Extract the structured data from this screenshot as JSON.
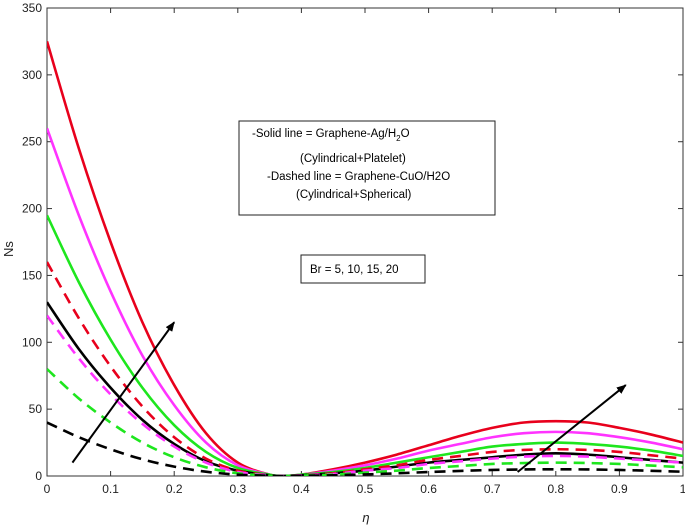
{
  "chart_data": {
    "type": "line",
    "xlabel": "η",
    "ylabel": "Ns",
    "xlim": [
      0,
      1
    ],
    "ylim": [
      0,
      350
    ],
    "xticks": [
      "0",
      "0.1",
      "0.2",
      "0.3",
      "0.4",
      "0.5",
      "0.6",
      "0.7",
      "0.8",
      "0.9",
      "1"
    ],
    "yticks": [
      "0",
      "50",
      "100",
      "150",
      "200",
      "250",
      "300",
      "350"
    ],
    "grid": false,
    "annotation_box": {
      "solid": "-Solid line = Graphene-Ag/H",
      "solid_sub": "2",
      "solid_end": "O",
      "solid_shape": "(Cylindrical+Platelet)",
      "dashed": "-Dashed line = Graphene-CuO/H2O",
      "dashed_shape": "(Cylindrical+Spherical)"
    },
    "param_label": "Br = 5, 10, 15, 20",
    "arrows": [
      {
        "from": [
          0.04,
          10
        ],
        "to": [
          0.2,
          115
        ]
      },
      {
        "from": [
          0.74,
          3
        ],
        "to": [
          0.91,
          68
        ]
      }
    ],
    "series": [
      {
        "color": "#e8001c",
        "style": "solid",
        "x": [
          0,
          0.05,
          0.1,
          0.15,
          0.2,
          0.25,
          0.3,
          0.35,
          0.37,
          0.4,
          0.45,
          0.5,
          0.55,
          0.6,
          0.65,
          0.7,
          0.75,
          0.8,
          0.85,
          0.9,
          0.95,
          1
        ],
        "y": [
          325,
          245,
          175,
          115,
          68,
          32,
          10,
          1,
          0,
          1,
          5,
          10,
          16,
          23,
          30,
          36,
          40,
          41,
          40,
          36,
          31,
          25
        ]
      },
      {
        "color": "#ff33ff",
        "style": "solid",
        "x": [
          0,
          0.05,
          0.1,
          0.15,
          0.2,
          0.25,
          0.3,
          0.35,
          0.37,
          0.4,
          0.45,
          0.5,
          0.55,
          0.6,
          0.65,
          0.7,
          0.75,
          0.8,
          0.85,
          0.9,
          0.95,
          1
        ],
        "y": [
          260,
          195,
          138,
          90,
          53,
          25,
          8,
          1,
          0,
          1,
          4,
          8,
          13,
          19,
          24,
          29,
          32,
          33,
          32,
          29,
          25,
          20
        ]
      },
      {
        "color": "#1ee61e",
        "style": "solid",
        "x": [
          0,
          0.05,
          0.1,
          0.15,
          0.2,
          0.25,
          0.3,
          0.35,
          0.37,
          0.4,
          0.45,
          0.5,
          0.55,
          0.6,
          0.65,
          0.7,
          0.75,
          0.8,
          0.85,
          0.9,
          0.95,
          1
        ],
        "y": [
          195,
          145,
          102,
          66,
          38,
          18,
          6,
          1,
          0,
          1,
          3,
          6,
          10,
          14,
          18,
          22,
          24,
          25,
          24,
          22,
          19,
          15
        ]
      },
      {
        "color": "#000000",
        "style": "solid",
        "x": [
          0,
          0.05,
          0.1,
          0.15,
          0.2,
          0.25,
          0.3,
          0.35,
          0.37,
          0.4,
          0.45,
          0.5,
          0.55,
          0.6,
          0.65,
          0.7,
          0.75,
          0.8,
          0.85,
          0.9,
          0.95,
          1
        ],
        "y": [
          130,
          95,
          66,
          42,
          24,
          11,
          4,
          0.5,
          0,
          0.5,
          2,
          4,
          7,
          10,
          12,
          14,
          16,
          17,
          16,
          14,
          12,
          10
        ]
      },
      {
        "color": "#e8001c",
        "style": "dashed",
        "x": [
          0,
          0.05,
          0.1,
          0.15,
          0.2,
          0.25,
          0.3,
          0.35,
          0.37,
          0.4,
          0.45,
          0.5,
          0.55,
          0.6,
          0.65,
          0.7,
          0.75,
          0.8,
          0.85,
          0.9,
          0.95,
          1
        ],
        "y": [
          160,
          118,
          82,
          52,
          29,
          13,
          4,
          0.5,
          0,
          0.5,
          2,
          5,
          8,
          12,
          15,
          18,
          19.5,
          20,
          19.5,
          18,
          15.5,
          13
        ]
      },
      {
        "color": "#ff33ff",
        "style": "dashed",
        "x": [
          0,
          0.05,
          0.1,
          0.15,
          0.2,
          0.25,
          0.3,
          0.35,
          0.37,
          0.4,
          0.45,
          0.5,
          0.55,
          0.6,
          0.65,
          0.7,
          0.75,
          0.8,
          0.85,
          0.9,
          0.95,
          1
        ],
        "y": [
          120,
          88,
          61,
          39,
          22,
          10,
          3,
          0.5,
          0,
          0.5,
          1.5,
          4,
          6,
          9,
          11,
          13,
          14.5,
          15,
          14.5,
          13,
          11.5,
          10
        ]
      },
      {
        "color": "#1ee61e",
        "style": "dashed",
        "x": [
          0,
          0.05,
          0.1,
          0.15,
          0.2,
          0.25,
          0.3,
          0.35,
          0.37,
          0.4,
          0.45,
          0.5,
          0.55,
          0.6,
          0.65,
          0.7,
          0.75,
          0.8,
          0.85,
          0.9,
          0.95,
          1
        ],
        "y": [
          80,
          58,
          40,
          25,
          14,
          6.5,
          2,
          0.3,
          0,
          0.3,
          1,
          2.5,
          4,
          6,
          7.5,
          9,
          9.7,
          10,
          9.7,
          9,
          7.8,
          6.5
        ]
      },
      {
        "color": "#000000",
        "style": "dashed",
        "x": [
          0,
          0.05,
          0.1,
          0.15,
          0.2,
          0.25,
          0.3,
          0.35,
          0.37,
          0.4,
          0.45,
          0.5,
          0.55,
          0.6,
          0.65,
          0.7,
          0.75,
          0.8,
          0.85,
          0.9,
          0.95,
          1
        ],
        "y": [
          40,
          29,
          20,
          12.5,
          7,
          3.2,
          1,
          0.2,
          0,
          0.2,
          0.5,
          1.2,
          2,
          3,
          3.8,
          4.5,
          4.9,
          5,
          4.9,
          4.5,
          3.9,
          3.2
        ]
      }
    ]
  }
}
